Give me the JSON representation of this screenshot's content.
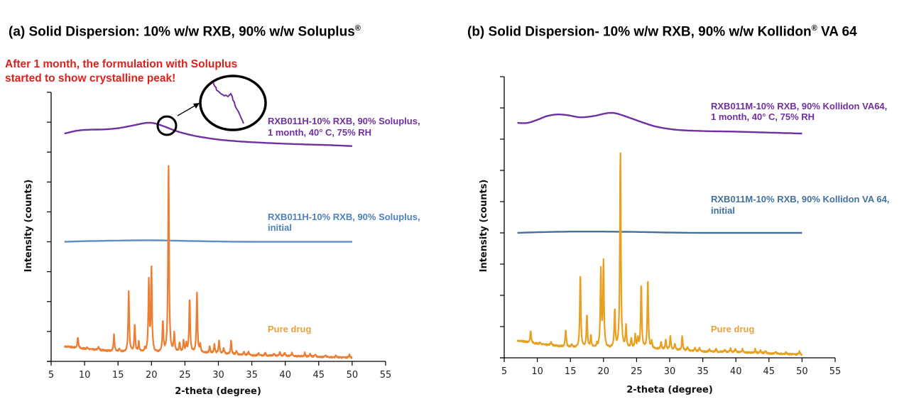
{
  "panels": [
    {
      "id": "a",
      "title": "(a) Solid Dispersion: 10% w/w RXB, 90% w/w Soluplus",
      "title_sup": "®",
      "title_suffix": "",
      "annotation": [
        "After 1 month, the formulation with Soluplus",
        "started to show crystalline peak!"
      ],
      "annotation_color": "#e0201c",
      "series_labels": {
        "aged": [
          "RXB011H-10%  RXB, 90%  Soluplus,",
          "1 month, 40° C, 75% RH"
        ],
        "initial": [
          "RXB011H-10%  RXB, 90%  Soluplus,",
          "initial"
        ],
        "pure": [
          "Pure drug"
        ]
      }
    },
    {
      "id": "b",
      "title": "(b) Solid Dispersion- 10% w/w RXB, 90% w/w Kollidon",
      "title_sup": "®",
      "title_suffix": " VA 64",
      "series_labels": {
        "aged": [
          "RXB011M-10%  RXB, 90% Kollidon VA64,",
          "1 month, 40° C, 75% RH"
        ],
        "initial": [
          "RXB011M-10%  RXB, 90% Kollidon VA 64,",
          "initial"
        ],
        "pure": [
          "Pure drug"
        ]
      }
    }
  ],
  "chart_data": [
    {
      "type": "line",
      "title": "(a) Solid Dispersion: 10% w/w RXB, 90% w/w Soluplus®",
      "xlabel": "2-theta (degree)",
      "ylabel": "Intensity  (counts)",
      "xlim": [
        5,
        55
      ],
      "ylim": [
        0,
        9
      ],
      "xticks": [
        5,
        10,
        15,
        20,
        25,
        30,
        35,
        40,
        45,
        50,
        55
      ],
      "yticks_count": 10,
      "ytick_labels_shown": false,
      "grid": false,
      "series": [
        {
          "name": "RXB011H-10% RXB, 90% Soluplus, 1 month, 40° C, 75% RH",
          "color": "#7030a0",
          "kind": "smooth",
          "x": [
            7,
            9,
            11,
            13,
            15,
            17,
            18.5,
            19.5,
            20.5,
            22,
            23.5,
            25,
            27,
            30,
            33,
            36,
            40,
            44,
            47,
            50
          ],
          "y": [
            7.62,
            7.72,
            7.75,
            7.76,
            7.8,
            7.88,
            7.95,
            7.98,
            7.96,
            7.85,
            7.72,
            7.62,
            7.52,
            7.42,
            7.36,
            7.32,
            7.28,
            7.25,
            7.23,
            7.2
          ]
        },
        {
          "name": "RXB011H-10% RXB, 90% Soluplus, initial",
          "color": "#5b8fc7",
          "kind": "smooth",
          "x": [
            7,
            10,
            15,
            20,
            25,
            30,
            35,
            40,
            45,
            50
          ],
          "y": [
            4.0,
            4.02,
            4.04,
            4.05,
            4.03,
            4.01,
            4.0,
            4.0,
            4.0,
            4.0
          ]
        },
        {
          "name": "Pure drug",
          "color": "#ed7d31",
          "kind": "xrd",
          "baseline": [
            [
              7,
              0.5
            ],
            [
              10,
              0.42
            ],
            [
              15,
              0.32
            ],
            [
              20,
              0.28
            ],
            [
              25,
              0.3
            ],
            [
              30,
              0.26
            ],
            [
              35,
              0.2
            ],
            [
              40,
              0.18
            ],
            [
              45,
              0.15
            ],
            [
              50,
              0.12
            ]
          ],
          "peaks": [
            [
              9.0,
              0.35
            ],
            [
              10.4,
              0.06
            ],
            [
              12.1,
              0.12
            ],
            [
              14.4,
              0.55
            ],
            [
              15.2,
              0.1
            ],
            [
              16.6,
              2.05
            ],
            [
              17.5,
              0.92
            ],
            [
              18.1,
              0.35
            ],
            [
              19.0,
              0.1
            ],
            [
              19.6,
              2.35
            ],
            [
              20.0,
              2.75
            ],
            [
              21.7,
              1.0
            ],
            [
              22.55,
              6.3
            ],
            [
              23.4,
              0.62
            ],
            [
              24.2,
              0.3
            ],
            [
              24.8,
              0.35
            ],
            [
              25.2,
              0.28
            ],
            [
              25.7,
              1.8
            ],
            [
              26.8,
              2.0
            ],
            [
              27.3,
              0.25
            ],
            [
              28.7,
              0.22
            ],
            [
              29.4,
              0.3
            ],
            [
              30.1,
              0.45
            ],
            [
              30.8,
              0.2
            ],
            [
              31.9,
              0.45
            ],
            [
              32.7,
              0.12
            ],
            [
              33.8,
              0.1
            ],
            [
              34.5,
              0.12
            ],
            [
              36.0,
              0.08
            ],
            [
              37.0,
              0.1
            ],
            [
              38.3,
              0.08
            ],
            [
              39.2,
              0.13
            ],
            [
              39.9,
              0.13
            ],
            [
              41.0,
              0.1
            ],
            [
              42.9,
              0.13
            ],
            [
              43.7,
              0.1
            ],
            [
              44.5,
              0.08
            ],
            [
              46.0,
              0.06
            ],
            [
              47.6,
              0.06
            ],
            [
              49.6,
              0.1
            ]
          ]
        }
      ]
    },
    {
      "type": "line",
      "title": "(b) Solid Dispersion- 10% w/w RXB, 90% w/w Kollidon® VA 64",
      "xlabel": "2-theta (degree)",
      "ylabel": "Intensity (counts)",
      "xlim": [
        5,
        55
      ],
      "ylim": [
        0,
        9
      ],
      "xticks": [
        5,
        10,
        15,
        20,
        25,
        30,
        35,
        40,
        45,
        50,
        55
      ],
      "yticks_count": 10,
      "ytick_labels_shown": false,
      "grid": false,
      "series": [
        {
          "name": "RXB011M-10% RXB, 90% Kollidon VA64, 1 month, 40° C, 75% RH",
          "color": "#7030a0",
          "kind": "smooth",
          "x": [
            7,
            8.5,
            10,
            11.5,
            13,
            14.5,
            16.5,
            18.5,
            20,
            21,
            22,
            24,
            26,
            28,
            31,
            35,
            40,
            45,
            50
          ],
          "y": [
            7.52,
            7.52,
            7.62,
            7.74,
            7.79,
            7.77,
            7.7,
            7.74,
            7.81,
            7.84,
            7.82,
            7.68,
            7.53,
            7.4,
            7.3,
            7.26,
            7.24,
            7.21,
            7.18
          ]
        },
        {
          "name": "RXB011M-10% RXB, 90% Kollidon VA 64, initial",
          "color": "#41719c",
          "kind": "smooth",
          "x": [
            7,
            10,
            15,
            20,
            25,
            30,
            35,
            40,
            45,
            50
          ],
          "y": [
            4.0,
            4.02,
            4.04,
            4.04,
            4.03,
            4.01,
            4.0,
            4.0,
            4.0,
            4.0
          ]
        },
        {
          "name": "Pure drug",
          "color": "#e8a020",
          "kind": "xrd",
          "baseline": [
            [
              7,
              0.55
            ],
            [
              10,
              0.45
            ],
            [
              15,
              0.33
            ],
            [
              20,
              0.3
            ],
            [
              25,
              0.3
            ],
            [
              30,
              0.26
            ],
            [
              35,
              0.2
            ],
            [
              40,
              0.18
            ],
            [
              45,
              0.14
            ],
            [
              50,
              0.1
            ]
          ],
          "peaks": [
            [
              9.0,
              0.38
            ],
            [
              10.4,
              0.06
            ],
            [
              12.1,
              0.12
            ],
            [
              14.3,
              0.55
            ],
            [
              15.2,
              0.1
            ],
            [
              16.5,
              2.35
            ],
            [
              17.5,
              1.05
            ],
            [
              18.1,
              0.38
            ],
            [
              19.0,
              0.1
            ],
            [
              19.6,
              2.45
            ],
            [
              20.0,
              2.7
            ],
            [
              21.7,
              1.2
            ],
            [
              22.55,
              6.3
            ],
            [
              23.4,
              0.7
            ],
            [
              24.2,
              0.3
            ],
            [
              24.8,
              0.4
            ],
            [
              25.2,
              0.3
            ],
            [
              25.7,
              2.05
            ],
            [
              26.7,
              2.2
            ],
            [
              27.3,
              0.22
            ],
            [
              28.7,
              0.22
            ],
            [
              29.4,
              0.3
            ],
            [
              30.1,
              0.45
            ],
            [
              30.8,
              0.2
            ],
            [
              31.9,
              0.45
            ],
            [
              32.7,
              0.12
            ],
            [
              33.8,
              0.1
            ],
            [
              34.5,
              0.12
            ],
            [
              36.0,
              0.08
            ],
            [
              37.0,
              0.1
            ],
            [
              38.3,
              0.08
            ],
            [
              39.2,
              0.13
            ],
            [
              39.9,
              0.13
            ],
            [
              41.0,
              0.1
            ],
            [
              42.9,
              0.13
            ],
            [
              43.7,
              0.1
            ],
            [
              44.5,
              0.08
            ],
            [
              46.0,
              0.06
            ],
            [
              47.6,
              0.06
            ],
            [
              49.6,
              0.1
            ]
          ]
        }
      ]
    }
  ],
  "inset": {
    "description_shown": false,
    "marker": "zoom-circle"
  },
  "colors": {
    "annotation": "#e0201c",
    "axis": "#000000"
  }
}
